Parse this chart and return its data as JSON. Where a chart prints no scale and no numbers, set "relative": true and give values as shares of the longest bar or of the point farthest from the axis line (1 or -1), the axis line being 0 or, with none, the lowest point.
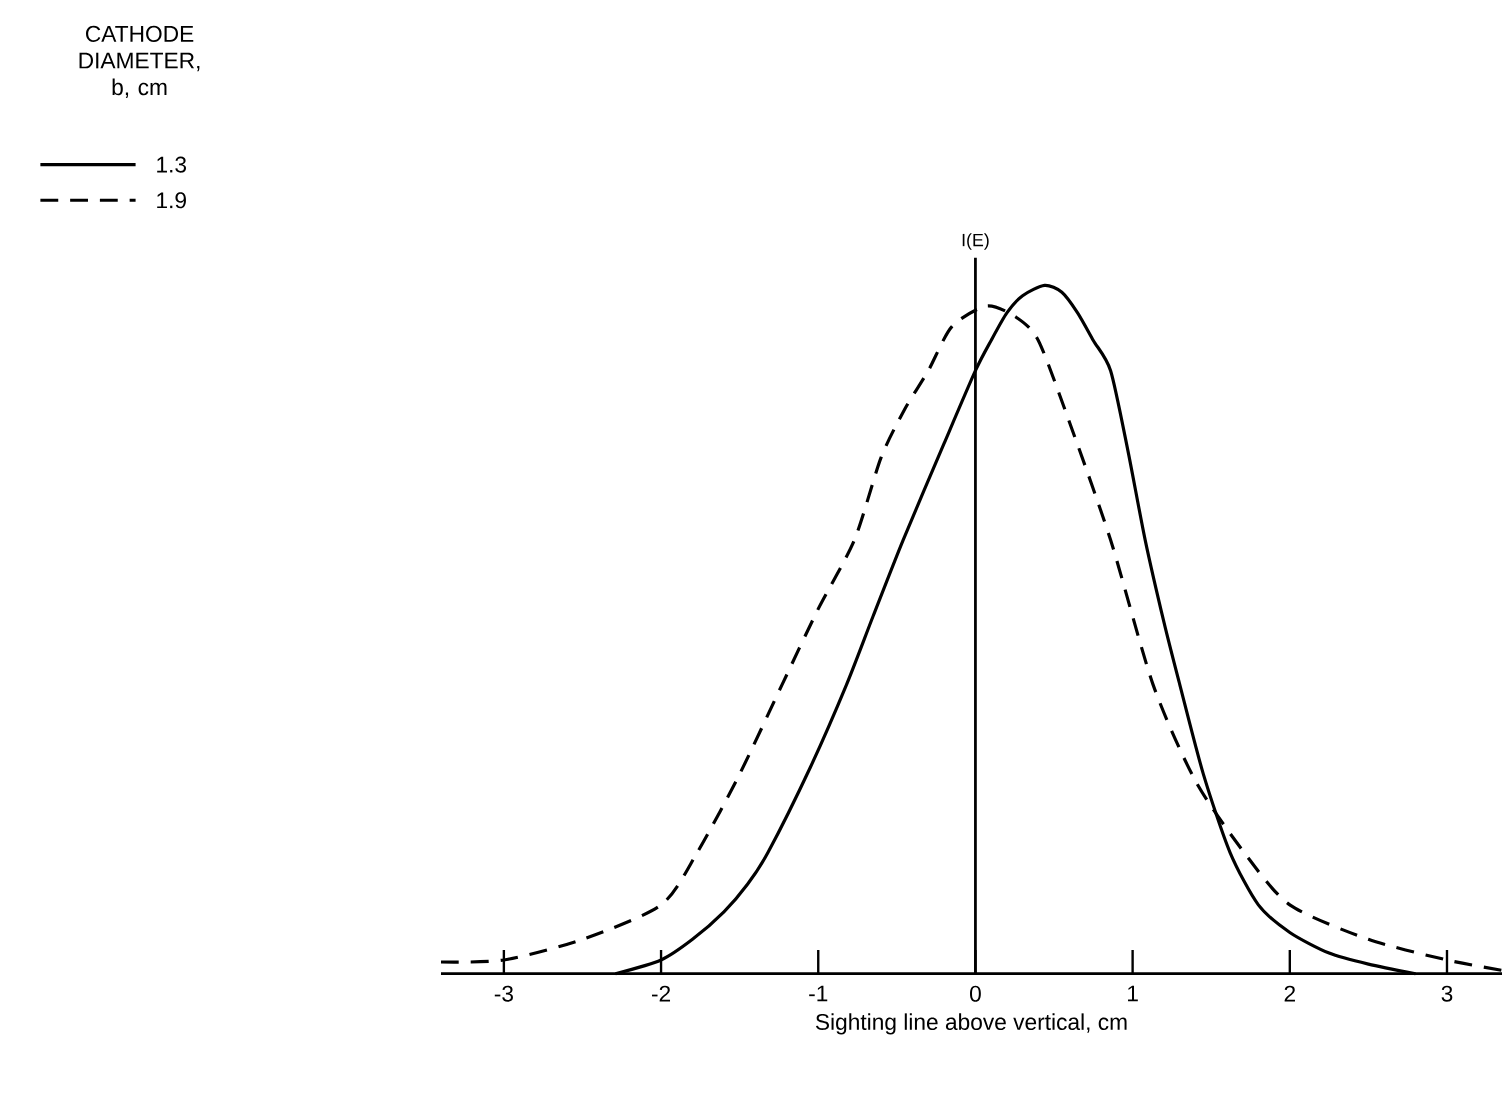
{
  "chart_data": {
    "type": "line",
    "relative": true,
    "ylabel": "I(E)",
    "xlabel": "Sighting line above vertical, cm",
    "legend_title": "CATHODE DIAMETER, b, cm",
    "legend": "top left",
    "xlim": [
      -3.4,
      3.35
    ],
    "xticks": [
      -3,
      -2,
      -1,
      0,
      1,
      2,
      3
    ],
    "series": [
      {
        "name": "1.3",
        "color": "#000000",
        "line_style": "solid",
        "x": [
          -2.29,
          -2.0,
          -1.8,
          -1.6,
          -1.45,
          -1.32,
          -1.05,
          -0.82,
          -0.65,
          -0.46,
          -0.2,
          0.0,
          0.1,
          0.2,
          0.3,
          0.44,
          0.55,
          0.65,
          0.75,
          0.86,
          0.97,
          1.08,
          1.2,
          1.3,
          1.45,
          1.62,
          1.8,
          2.0,
          2.25,
          2.5,
          2.8
        ],
        "values": [
          0.0,
          0.02,
          0.05,
          0.09,
          0.13,
          0.176,
          0.3,
          0.42,
          0.52,
          0.63,
          0.77,
          0.876,
          0.92,
          0.96,
          0.985,
          1.0,
          0.99,
          0.96,
          0.92,
          0.876,
          0.76,
          0.63,
          0.51,
          0.42,
          0.29,
          0.176,
          0.1,
          0.06,
          0.03,
          0.014,
          0.0
        ]
      },
      {
        "name": "1.9",
        "color": "#000000",
        "line_style": "dashed",
        "x": [
          -3.4,
          -3.0,
          -2.5,
          -2.0,
          -1.77,
          -1.5,
          -1.23,
          -1.0,
          -0.77,
          -0.6,
          -0.45,
          -0.3,
          -0.15,
          0.07,
          0.25,
          0.4,
          0.6,
          0.86,
          1.13,
          1.4,
          1.71,
          2.0,
          2.5,
          3.0,
          3.35
        ],
        "values": [
          0.017,
          0.02,
          0.05,
          0.1,
          0.176,
          0.29,
          0.42,
          0.53,
          0.63,
          0.75,
          0.82,
          0.876,
          0.94,
          0.97,
          0.955,
          0.92,
          0.8,
          0.63,
          0.42,
          0.28,
          0.176,
          0.1,
          0.05,
          0.02,
          0.005
        ]
      }
    ]
  }
}
